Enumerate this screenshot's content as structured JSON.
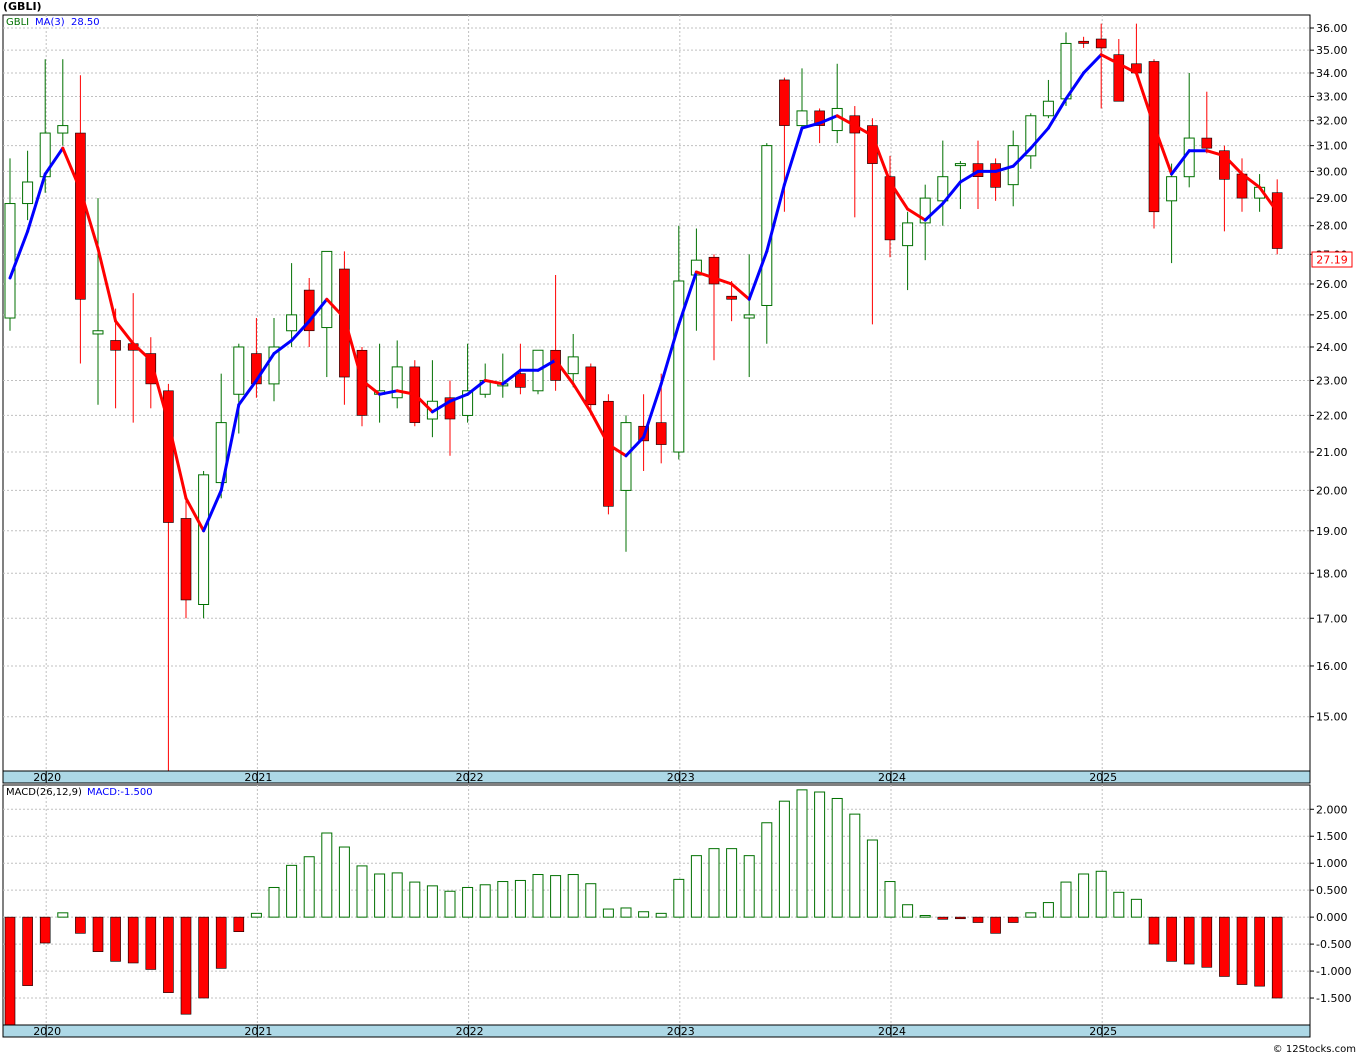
{
  "ticker_label": "(GBLI)",
  "footer": "© 12Stocks.com",
  "chart_data": [
    {
      "type": "candlestick",
      "symbol": "GBLI",
      "legend": {
        "symbol": "GBLI",
        "ma_label": "MA(3)",
        "ma_value": "28.50"
      },
      "last_price": "27.19",
      "y_ticks": [
        "15.00",
        "16.00",
        "17.00",
        "18.00",
        "19.00",
        "20.00",
        "21.00",
        "22.00",
        "23.00",
        "24.00",
        "25.00",
        "26.00",
        "27.00",
        "28.00",
        "29.00",
        "30.00",
        "31.00",
        "32.00",
        "33.00",
        "34.00",
        "35.00",
        "36.00"
      ],
      "x_ticks": [
        "2020",
        "2021",
        "2022",
        "2023",
        "2024",
        "2025"
      ],
      "colors": {
        "up": "#007000",
        "down": "#ff0000",
        "ma_up": "#0000ff",
        "ma_down": "#ff0000",
        "axis_band": "#add8e6",
        "grid": "#c0c0c0"
      },
      "scale": "log",
      "ylim": [
        14,
        36.6
      ],
      "candles": [
        {
          "o": 24.9,
          "h": 30.5,
          "l": 24.5,
          "c": 28.8
        },
        {
          "o": 28.8,
          "h": 30.8,
          "l": 28.2,
          "c": 29.6
        },
        {
          "o": 29.8,
          "h": 34.6,
          "l": 29.2,
          "c": 31.5
        },
        {
          "o": 31.5,
          "h": 34.6,
          "l": 31.0,
          "c": 31.8
        },
        {
          "o": 31.5,
          "h": 33.9,
          "l": 23.5,
          "c": 25.5
        },
        {
          "o": 24.4,
          "h": 29.0,
          "l": 22.3,
          "c": 24.5
        },
        {
          "o": 24.2,
          "h": 25.2,
          "l": 22.2,
          "c": 23.9
        },
        {
          "o": 24.1,
          "h": 25.7,
          "l": 21.8,
          "c": 23.9
        },
        {
          "o": 23.8,
          "h": 24.3,
          "l": 22.2,
          "c": 22.9
        },
        {
          "o": 22.7,
          "h": 22.9,
          "l": 14.0,
          "c": 19.2
        },
        {
          "o": 19.3,
          "h": 19.8,
          "l": 17.0,
          "c": 17.4
        },
        {
          "o": 17.3,
          "h": 20.5,
          "l": 17.0,
          "c": 20.4
        },
        {
          "o": 20.2,
          "h": 23.2,
          "l": 19.8,
          "c": 21.8
        },
        {
          "o": 22.6,
          "h": 24.1,
          "l": 21.5,
          "c": 24.0
        },
        {
          "o": 23.8,
          "h": 24.9,
          "l": 22.5,
          "c": 22.9
        },
        {
          "o": 22.9,
          "h": 24.9,
          "l": 22.4,
          "c": 24.0
        },
        {
          "o": 24.5,
          "h": 26.7,
          "l": 24.0,
          "c": 25.0
        },
        {
          "o": 25.8,
          "h": 26.2,
          "l": 24.0,
          "c": 24.5
        },
        {
          "o": 24.6,
          "h": 27.1,
          "l": 23.1,
          "c": 27.1
        },
        {
          "o": 26.5,
          "h": 27.1,
          "l": 22.3,
          "c": 23.1
        },
        {
          "o": 23.9,
          "h": 24.0,
          "l": 21.7,
          "c": 22.0
        },
        {
          "o": 22.6,
          "h": 24.1,
          "l": 21.8,
          "c": 22.7
        },
        {
          "o": 22.5,
          "h": 24.2,
          "l": 22.2,
          "c": 23.4
        },
        {
          "o": 23.4,
          "h": 23.6,
          "l": 21.7,
          "c": 21.8
        },
        {
          "o": 21.9,
          "h": 23.6,
          "l": 21.4,
          "c": 22.4
        },
        {
          "o": 22.5,
          "h": 23.0,
          "l": 20.9,
          "c": 21.9
        },
        {
          "o": 22.0,
          "h": 24.1,
          "l": 21.8,
          "c": 22.7
        },
        {
          "o": 22.6,
          "h": 23.5,
          "l": 22.5,
          "c": 23.0
        },
        {
          "o": 22.9,
          "h": 23.8,
          "l": 22.5,
          "c": 22.9
        },
        {
          "o": 23.2,
          "h": 24.1,
          "l": 22.6,
          "c": 22.8
        },
        {
          "o": 22.7,
          "h": 23.9,
          "l": 22.6,
          "c": 23.9
        },
        {
          "o": 23.9,
          "h": 26.3,
          "l": 22.7,
          "c": 23.0
        },
        {
          "o": 23.2,
          "h": 24.4,
          "l": 22.8,
          "c": 23.7
        },
        {
          "o": 23.4,
          "h": 23.5,
          "l": 22.0,
          "c": 22.3
        },
        {
          "o": 22.4,
          "h": 22.6,
          "l": 19.4,
          "c": 19.6
        },
        {
          "o": 20.0,
          "h": 22.0,
          "l": 18.5,
          "c": 21.8
        },
        {
          "o": 21.7,
          "h": 22.6,
          "l": 20.5,
          "c": 21.3
        },
        {
          "o": 21.8,
          "h": 23.2,
          "l": 20.7,
          "c": 21.2
        },
        {
          "o": 21.0,
          "h": 28.0,
          "l": 20.8,
          "c": 26.1
        },
        {
          "o": 26.3,
          "h": 27.9,
          "l": 24.5,
          "c": 26.8
        },
        {
          "o": 26.9,
          "h": 27.0,
          "l": 23.6,
          "c": 26.0
        },
        {
          "o": 25.6,
          "h": 26.1,
          "l": 24.8,
          "c": 25.5
        },
        {
          "o": 24.9,
          "h": 27.0,
          "l": 23.1,
          "c": 25.0
        },
        {
          "o": 25.3,
          "h": 31.1,
          "l": 24.1,
          "c": 31.0
        },
        {
          "o": 33.7,
          "h": 33.8,
          "l": 28.5,
          "c": 31.8
        },
        {
          "o": 31.8,
          "h": 34.2,
          "l": 31.6,
          "c": 32.4
        },
        {
          "o": 32.4,
          "h": 32.5,
          "l": 31.1,
          "c": 31.8
        },
        {
          "o": 31.6,
          "h": 34.4,
          "l": 31.1,
          "c": 32.5
        },
        {
          "o": 32.2,
          "h": 32.6,
          "l": 28.3,
          "c": 31.5
        },
        {
          "o": 31.8,
          "h": 32.1,
          "l": 24.7,
          "c": 30.3
        },
        {
          "o": 29.8,
          "h": 30.6,
          "l": 26.9,
          "c": 27.5
        },
        {
          "o": 27.3,
          "h": 28.5,
          "l": 25.8,
          "c": 28.1
        },
        {
          "o": 28.1,
          "h": 29.5,
          "l": 26.8,
          "c": 29.0
        },
        {
          "o": 28.9,
          "h": 31.2,
          "l": 28.0,
          "c": 29.8
        },
        {
          "o": 30.3,
          "h": 30.4,
          "l": 28.6,
          "c": 30.3
        },
        {
          "o": 30.3,
          "h": 31.2,
          "l": 28.6,
          "c": 29.8
        },
        {
          "o": 30.3,
          "h": 30.5,
          "l": 28.9,
          "c": 29.4
        },
        {
          "o": 29.5,
          "h": 31.6,
          "l": 28.7,
          "c": 31.0
        },
        {
          "o": 30.6,
          "h": 32.3,
          "l": 30.1,
          "c": 32.2
        },
        {
          "o": 32.2,
          "h": 33.7,
          "l": 32.1,
          "c": 32.8
        },
        {
          "o": 32.9,
          "h": 35.8,
          "l": 32.6,
          "c": 35.3
        },
        {
          "o": 35.4,
          "h": 35.6,
          "l": 35.1,
          "c": 35.3
        },
        {
          "o": 35.5,
          "h": 36.2,
          "l": 32.5,
          "c": 35.1
        },
        {
          "o": 34.8,
          "h": 35.5,
          "l": 32.8,
          "c": 32.8
        },
        {
          "o": 34.4,
          "h": 36.2,
          "l": 33.9,
          "c": 34.0
        },
        {
          "o": 34.5,
          "h": 34.6,
          "l": 27.9,
          "c": 28.5
        },
        {
          "o": 28.9,
          "h": 30.3,
          "l": 26.7,
          "c": 29.8
        },
        {
          "o": 29.8,
          "h": 34.0,
          "l": 29.4,
          "c": 31.3
        },
        {
          "o": 31.3,
          "h": 33.2,
          "l": 30.7,
          "c": 30.9
        },
        {
          "o": 30.8,
          "h": 31.0,
          "l": 27.8,
          "c": 29.7
        },
        {
          "o": 29.9,
          "h": 30.5,
          "l": 28.5,
          "c": 29.0
        },
        {
          "o": 29.0,
          "h": 29.9,
          "l": 28.5,
          "c": 29.4
        },
        {
          "o": 29.2,
          "h": 29.7,
          "l": 27.0,
          "c": 27.2
        }
      ],
      "ma": [
        26.2,
        27.8,
        29.9,
        30.9,
        29.3,
        27.2,
        24.8,
        24.1,
        23.6,
        21.8,
        19.8,
        19.0,
        20.0,
        22.3,
        23.0,
        23.8,
        24.2,
        24.8,
        25.5,
        24.9,
        23.0,
        22.6,
        22.7,
        22.6,
        22.1,
        22.4,
        22.6,
        23.0,
        22.9,
        23.3,
        23.3,
        23.6,
        22.9,
        22.1,
        21.2,
        20.9,
        21.4,
        22.9,
        24.7,
        26.4,
        26.2,
        26.0,
        25.5,
        27.1,
        29.5,
        31.7,
        31.9,
        32.2,
        31.8,
        31.4,
        29.6,
        28.6,
        28.2,
        28.8,
        29.6,
        30.0,
        30.0,
        30.2,
        30.9,
        31.7,
        32.9,
        34.0,
        34.8,
        34.4,
        34.0,
        31.8,
        29.9,
        30.8,
        30.8,
        30.6,
        29.9,
        29.4,
        28.5
      ]
    },
    {
      "type": "bar",
      "title": "MACD(26,12,9)",
      "legend": {
        "label": "MACD(26,12,9)",
        "value_label": "MACD:-1.500"
      },
      "y_ticks": [
        "-1.500",
        "-1.000",
        "-0.500",
        "0.000",
        "0.500",
        "1.000",
        "1.500",
        "2.000"
      ],
      "x_ticks": [
        "2020",
        "2021",
        "2022",
        "2023",
        "2024",
        "2025"
      ],
      "ylim": [
        -2.0,
        2.45
      ],
      "values": [
        -2.0,
        -1.27,
        -0.48,
        0.08,
        -0.3,
        -0.64,
        -0.82,
        -0.85,
        -0.97,
        -1.4,
        -1.8,
        -1.5,
        -0.95,
        -0.27,
        0.07,
        0.55,
        0.96,
        1.12,
        1.56,
        1.3,
        0.95,
        0.8,
        0.82,
        0.65,
        0.58,
        0.48,
        0.55,
        0.6,
        0.66,
        0.68,
        0.79,
        0.77,
        0.79,
        0.62,
        0.15,
        0.17,
        0.1,
        0.07,
        0.7,
        1.14,
        1.27,
        1.27,
        1.14,
        1.75,
        2.15,
        2.36,
        2.32,
        2.2,
        1.91,
        1.43,
        0.66,
        0.23,
        0.03,
        -0.04,
        -0.03,
        -0.1,
        -0.3,
        -0.1,
        0.08,
        0.27,
        0.65,
        0.8,
        0.85,
        0.46,
        0.33,
        -0.5,
        -0.82,
        -0.87,
        -0.93,
        -1.1,
        -1.25,
        -1.28,
        -1.5
      ]
    }
  ]
}
